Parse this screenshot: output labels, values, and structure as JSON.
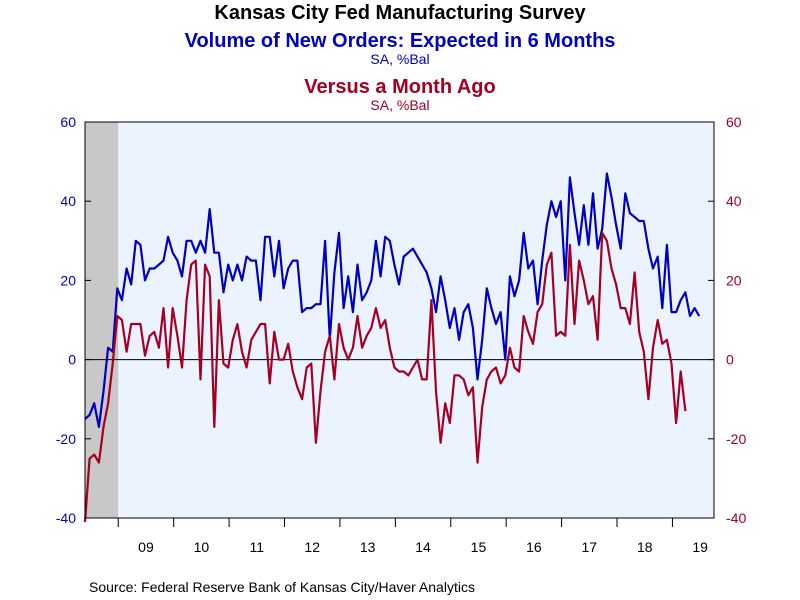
{
  "chart_data": {
    "type": "line",
    "title": "Kansas City Fed Manufacturing Survey",
    "subtitles": [
      {
        "text": "Volume of New Orders: Expected in 6 Months",
        "unit": "SA, %Bal"
      },
      {
        "text": "Versus a Month Ago",
        "unit": "SA, %Bal"
      }
    ],
    "source": "Source:  Federal Reserve Bank of Kansas City/Haver Analytics",
    "x_range": [
      2008.4,
      2019.75
    ],
    "x_ticks": [
      {
        "label": "09",
        "year": 2009
      },
      {
        "label": "10",
        "year": 2010
      },
      {
        "label": "11",
        "year": 2011
      },
      {
        "label": "12",
        "year": 2012
      },
      {
        "label": "13",
        "year": 2013
      },
      {
        "label": "14",
        "year": 2014
      },
      {
        "label": "15",
        "year": 2015
      },
      {
        "label": "16",
        "year": 2016
      },
      {
        "label": "17",
        "year": 2017
      },
      {
        "label": "18",
        "year": 2018
      },
      {
        "label": "19",
        "year": 2019
      }
    ],
    "y_left": {
      "min": -40,
      "max": 60,
      "ticks": [
        -40,
        -20,
        0,
        20,
        40,
        60
      ]
    },
    "y_right": {
      "min": -40,
      "max": 60,
      "ticks": [
        -40,
        -20,
        0,
        20,
        40,
        60
      ]
    },
    "recession_shade": {
      "start": 2008.4,
      "end": 2009.0
    },
    "colors": {
      "expected": "#0000c0",
      "current": "#a50021",
      "plot_bg": "#eaf3ff",
      "recession": "#c8c8c8",
      "axis": "#000000"
    },
    "series": [
      {
        "name": "Volume of New Orders: Expected in 6 Months",
        "axis": "left",
        "color": "#0000c0",
        "start": 2008.4,
        "step": 0.0833333,
        "values": [
          -15,
          -14,
          -11,
          -17,
          -8,
          3,
          2,
          18,
          15,
          23,
          19,
          30,
          29,
          20,
          23,
          23,
          24,
          25,
          31,
          27,
          25,
          21,
          30,
          30,
          27,
          30,
          27,
          38,
          27,
          27,
          17,
          24,
          20,
          24,
          20,
          26,
          25,
          25,
          15,
          31,
          31,
          21,
          30,
          18,
          23,
          25,
          25,
          12,
          13,
          13,
          14,
          14,
          30,
          5,
          22,
          32,
          13,
          21,
          12,
          24,
          15,
          17,
          20,
          30,
          21,
          31,
          30,
          24,
          19,
          26,
          27,
          28,
          26,
          24,
          22,
          18,
          12,
          21,
          15,
          8,
          13,
          5,
          12,
          14,
          8,
          -5,
          5,
          18,
          13,
          9,
          12,
          0,
          21,
          16,
          20,
          32,
          23,
          25,
          14,
          25,
          34,
          40,
          36,
          40,
          20,
          46,
          37,
          29,
          39,
          29,
          42,
          28,
          33,
          47,
          41,
          34,
          28,
          42,
          37,
          36,
          35,
          35,
          28,
          23,
          26,
          13,
          29,
          12,
          12,
          15,
          17,
          11,
          13,
          11
        ]
      },
      {
        "name": "Versus a Month Ago",
        "axis": "right",
        "color": "#a50021",
        "start": 2008.4,
        "step": 0.0833333,
        "values": [
          -41,
          -25,
          -24,
          -26,
          -17,
          -11,
          -1,
          11,
          10,
          2,
          9,
          9,
          9,
          1,
          6,
          7,
          3,
          13,
          -2,
          13,
          6,
          -2,
          15,
          24,
          25,
          -5,
          24,
          21,
          -17,
          15,
          -1,
          -2,
          5,
          9,
          2,
          -2,
          5,
          7,
          9,
          9,
          -6,
          7,
          0,
          0,
          4,
          -3,
          -7,
          -10,
          -2,
          -1,
          -21,
          -8,
          2,
          6,
          -5,
          9,
          3,
          0,
          3,
          11,
          3,
          6,
          8,
          13,
          8,
          10,
          3,
          -2,
          -3,
          -3,
          -4,
          -2,
          0,
          -5,
          -5,
          15,
          -8,
          -21,
          -11,
          -16,
          -4,
          -4,
          -5,
          -9,
          -7,
          -26,
          -12,
          -5,
          -3,
          -2,
          -6,
          -4,
          3,
          -2,
          -3,
          11,
          7,
          4,
          12,
          14,
          24,
          27,
          6,
          7,
          6,
          29,
          9,
          25,
          20,
          14,
          16,
          5,
          32,
          30,
          23,
          19,
          13,
          13,
          9,
          22,
          7,
          2,
          -10,
          3,
          10,
          4,
          5,
          -1,
          -16,
          -3,
          -13
        ]
      }
    ]
  }
}
